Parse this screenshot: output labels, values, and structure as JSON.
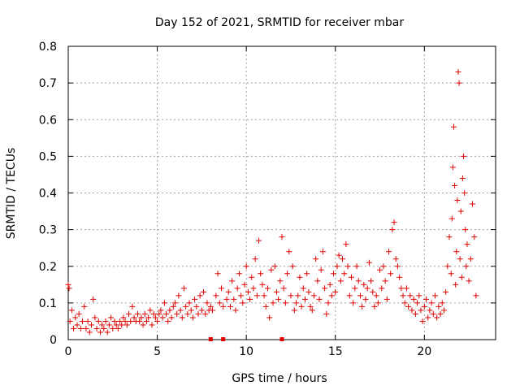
{
  "chart_data": {
    "type": "scatter",
    "title": "Day 152 of 2021, SRMTID for receiver mbar",
    "xlabel": "GPS time / hours",
    "ylabel": "SRMTID / TECUs",
    "xlim": [
      0,
      24
    ],
    "ylim": [
      0,
      0.8
    ],
    "xticks": [
      0,
      5,
      10,
      15,
      20
    ],
    "yticks": [
      0,
      0.1,
      0.2,
      0.3,
      0.4,
      0.5,
      0.6,
      0.7,
      0.8
    ],
    "grid": true,
    "marker": "+",
    "color": "#e00000",
    "series": [
      {
        "name": "SRMTID",
        "points": [
          [
            0.0,
            0.15
          ],
          [
            0.05,
            0.14
          ],
          [
            0.1,
            0.05
          ],
          [
            0.2,
            0.08
          ],
          [
            0.3,
            0.03
          ],
          [
            0.4,
            0.06
          ],
          [
            0.5,
            0.04
          ],
          [
            0.6,
            0.07
          ],
          [
            0.7,
            0.03
          ],
          [
            0.8,
            0.05
          ],
          [
            0.9,
            0.09
          ],
          [
            1.0,
            0.03
          ],
          [
            1.1,
            0.05
          ],
          [
            1.2,
            0.02
          ],
          [
            1.3,
            0.04
          ],
          [
            1.4,
            0.11
          ],
          [
            1.5,
            0.06
          ],
          [
            1.6,
            0.03
          ],
          [
            1.7,
            0.05
          ],
          [
            1.8,
            0.02
          ],
          [
            1.9,
            0.04
          ],
          [
            2.0,
            0.03
          ],
          [
            2.1,
            0.05
          ],
          [
            2.2,
            0.02
          ],
          [
            2.3,
            0.04
          ],
          [
            2.4,
            0.06
          ],
          [
            2.5,
            0.03
          ],
          [
            2.6,
            0.05
          ],
          [
            2.7,
            0.04
          ],
          [
            2.8,
            0.03
          ],
          [
            2.9,
            0.05
          ],
          [
            3.0,
            0.04
          ],
          [
            3.1,
            0.06
          ],
          [
            3.2,
            0.05
          ],
          [
            3.3,
            0.04
          ],
          [
            3.4,
            0.07
          ],
          [
            3.5,
            0.05
          ],
          [
            3.6,
            0.09
          ],
          [
            3.7,
            0.06
          ],
          [
            3.8,
            0.05
          ],
          [
            3.9,
            0.07
          ],
          [
            4.0,
            0.05
          ],
          [
            4.1,
            0.06
          ],
          [
            4.2,
            0.04
          ],
          [
            4.3,
            0.07
          ],
          [
            4.4,
            0.05
          ],
          [
            4.5,
            0.06
          ],
          [
            4.6,
            0.08
          ],
          [
            4.7,
            0.04
          ],
          [
            4.8,
            0.07
          ],
          [
            4.9,
            0.06
          ],
          [
            5.0,
            0.05
          ],
          [
            5.1,
            0.07
          ],
          [
            5.2,
            0.08
          ],
          [
            5.3,
            0.06
          ],
          [
            5.4,
            0.1
          ],
          [
            5.5,
            0.07
          ],
          [
            5.6,
            0.05
          ],
          [
            5.7,
            0.08
          ],
          [
            5.8,
            0.06
          ],
          [
            5.9,
            0.09
          ],
          [
            6.0,
            0.1
          ],
          [
            6.1,
            0.07
          ],
          [
            6.2,
            0.12
          ],
          [
            6.3,
            0.08
          ],
          [
            6.4,
            0.06
          ],
          [
            6.5,
            0.14
          ],
          [
            6.6,
            0.09
          ],
          [
            6.7,
            0.07
          ],
          [
            6.8,
            0.1
          ],
          [
            6.9,
            0.08
          ],
          [
            7.0,
            0.06
          ],
          [
            7.1,
            0.11
          ],
          [
            7.2,
            0.09
          ],
          [
            7.3,
            0.07
          ],
          [
            7.4,
            0.12
          ],
          [
            7.5,
            0.08
          ],
          [
            7.6,
            0.13
          ],
          [
            7.7,
            0.07
          ],
          [
            7.8,
            0.1
          ],
          [
            7.9,
            0.08
          ],
          [
            8.0,
            0.09
          ],
          [
            8.1,
            0.08
          ],
          [
            8.3,
            0.12
          ],
          [
            8.4,
            0.18
          ],
          [
            8.5,
            0.1
          ],
          [
            8.6,
            0.14
          ],
          [
            8.7,
            0.09
          ],
          [
            8.9,
            0.11
          ],
          [
            9.0,
            0.13
          ],
          [
            9.1,
            0.09
          ],
          [
            9.2,
            0.16
          ],
          [
            9.3,
            0.11
          ],
          [
            9.4,
            0.08
          ],
          [
            9.5,
            0.14
          ],
          [
            9.6,
            0.18
          ],
          [
            9.7,
            0.12
          ],
          [
            9.8,
            0.1
          ],
          [
            9.9,
            0.15
          ],
          [
            10.0,
            0.2
          ],
          [
            10.1,
            0.13
          ],
          [
            10.2,
            0.11
          ],
          [
            10.3,
            0.17
          ],
          [
            10.4,
            0.14
          ],
          [
            10.5,
            0.22
          ],
          [
            10.6,
            0.12
          ],
          [
            10.7,
            0.27
          ],
          [
            10.8,
            0.18
          ],
          [
            10.9,
            0.15
          ],
          [
            11.0,
            0.12
          ],
          [
            11.1,
            0.09
          ],
          [
            11.2,
            0.14
          ],
          [
            11.3,
            0.06
          ],
          [
            11.4,
            0.19
          ],
          [
            11.5,
            0.1
          ],
          [
            11.6,
            0.2
          ],
          [
            11.7,
            0.13
          ],
          [
            11.8,
            0.11
          ],
          [
            11.9,
            0.16
          ],
          [
            12.0,
            0.28
          ],
          [
            12.1,
            0.14
          ],
          [
            12.2,
            0.1
          ],
          [
            12.3,
            0.18
          ],
          [
            12.4,
            0.24
          ],
          [
            12.5,
            0.12
          ],
          [
            12.6,
            0.2
          ],
          [
            12.7,
            0.08
          ],
          [
            12.8,
            0.1
          ],
          [
            12.9,
            0.12
          ],
          [
            13.0,
            0.17
          ],
          [
            13.1,
            0.09
          ],
          [
            13.2,
            0.14
          ],
          [
            13.3,
            0.11
          ],
          [
            13.4,
            0.18
          ],
          [
            13.5,
            0.13
          ],
          [
            13.6,
            0.09
          ],
          [
            13.7,
            0.08
          ],
          [
            13.8,
            0.12
          ],
          [
            13.9,
            0.22
          ],
          [
            14.0,
            0.16
          ],
          [
            14.1,
            0.11
          ],
          [
            14.2,
            0.19
          ],
          [
            14.3,
            0.24
          ],
          [
            14.4,
            0.14
          ],
          [
            14.5,
            0.07
          ],
          [
            14.6,
            0.1
          ],
          [
            14.7,
            0.15
          ],
          [
            14.8,
            0.12
          ],
          [
            14.9,
            0.18
          ],
          [
            15.0,
            0.13
          ],
          [
            15.1,
            0.2
          ],
          [
            15.2,
            0.23
          ],
          [
            15.3,
            0.16
          ],
          [
            15.4,
            0.22
          ],
          [
            15.5,
            0.18
          ],
          [
            15.6,
            0.26
          ],
          [
            15.7,
            0.2
          ],
          [
            15.8,
            0.12
          ],
          [
            15.9,
            0.17
          ],
          [
            16.0,
            0.1
          ],
          [
            16.1,
            0.14
          ],
          [
            16.2,
            0.2
          ],
          [
            16.3,
            0.16
          ],
          [
            16.4,
            0.12
          ],
          [
            16.5,
            0.09
          ],
          [
            16.6,
            0.15
          ],
          [
            16.7,
            0.11
          ],
          [
            16.8,
            0.14
          ],
          [
            16.9,
            0.21
          ],
          [
            17.0,
            0.16
          ],
          [
            17.1,
            0.13
          ],
          [
            17.2,
            0.09
          ],
          [
            17.3,
            0.12
          ],
          [
            17.4,
            0.1
          ],
          [
            17.5,
            0.19
          ],
          [
            17.6,
            0.14
          ],
          [
            17.7,
            0.2
          ],
          [
            17.8,
            0.16
          ],
          [
            17.9,
            0.11
          ],
          [
            18.0,
            0.24
          ],
          [
            18.1,
            0.18
          ],
          [
            18.2,
            0.3
          ],
          [
            18.3,
            0.32
          ],
          [
            18.4,
            0.22
          ],
          [
            18.5,
            0.2
          ],
          [
            18.6,
            0.17
          ],
          [
            18.7,
            0.14
          ],
          [
            18.8,
            0.12
          ],
          [
            18.9,
            0.1
          ],
          [
            19.0,
            0.14
          ],
          [
            19.1,
            0.09
          ],
          [
            19.2,
            0.12
          ],
          [
            19.3,
            0.08
          ],
          [
            19.4,
            0.11
          ],
          [
            19.5,
            0.07
          ],
          [
            19.6,
            0.1
          ],
          [
            19.7,
            0.12
          ],
          [
            19.8,
            0.08
          ],
          [
            19.9,
            0.05
          ],
          [
            20.0,
            0.09
          ],
          [
            20.1,
            0.11
          ],
          [
            20.2,
            0.06
          ],
          [
            20.3,
            0.08
          ],
          [
            20.4,
            0.1
          ],
          [
            20.5,
            0.07
          ],
          [
            20.6,
            0.12
          ],
          [
            20.7,
            0.06
          ],
          [
            20.8,
            0.09
          ],
          [
            20.9,
            0.07
          ],
          [
            21.0,
            0.1
          ],
          [
            21.1,
            0.08
          ],
          [
            21.2,
            0.13
          ],
          [
            21.3,
            0.2
          ],
          [
            21.4,
            0.28
          ],
          [
            21.5,
            0.18
          ],
          [
            21.55,
            0.33
          ],
          [
            21.6,
            0.47
          ],
          [
            21.65,
            0.58
          ],
          [
            21.7,
            0.42
          ],
          [
            21.75,
            0.15
          ],
          [
            21.8,
            0.24
          ],
          [
            21.85,
            0.38
          ],
          [
            21.9,
            0.73
          ],
          [
            21.95,
            0.7
          ],
          [
            22.0,
            0.22
          ],
          [
            22.05,
            0.35
          ],
          [
            22.1,
            0.17
          ],
          [
            22.15,
            0.44
          ],
          [
            22.2,
            0.5
          ],
          [
            22.25,
            0.4
          ],
          [
            22.3,
            0.3
          ],
          [
            22.35,
            0.2
          ],
          [
            22.4,
            0.26
          ],
          [
            22.5,
            0.16
          ],
          [
            22.6,
            0.22
          ],
          [
            22.7,
            0.37
          ],
          [
            22.8,
            0.28
          ],
          [
            22.9,
            0.12
          ]
        ]
      }
    ],
    "gap_markers_x": [
      8.0,
      8.7,
      12.0
    ]
  }
}
